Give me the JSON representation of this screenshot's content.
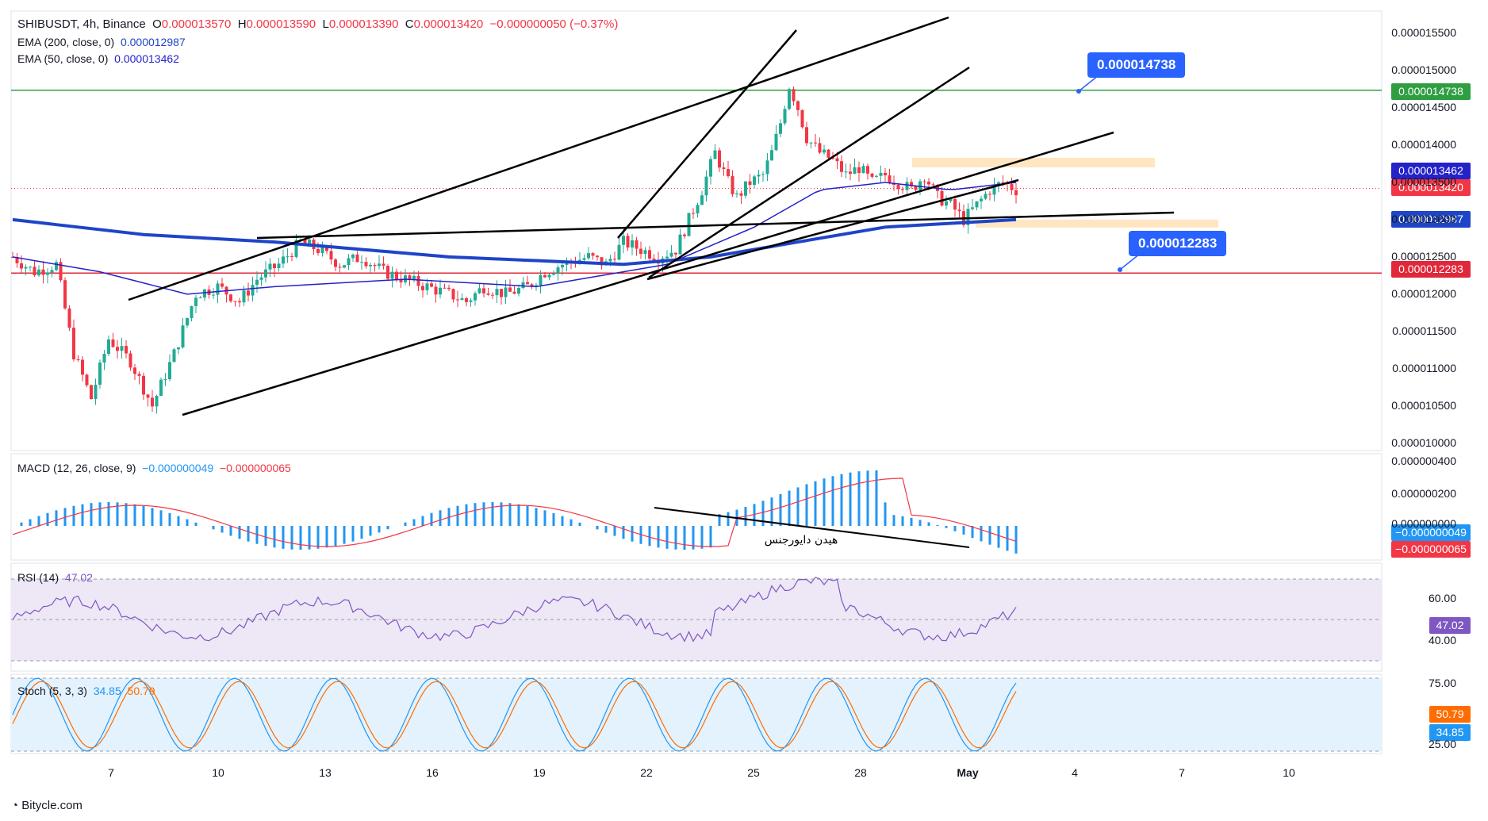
{
  "header": {
    "symbol": "SHIBUSDT, 4h, Binance",
    "o_label": "O",
    "o": "0.000013570",
    "h_label": "H",
    "h": "0.000013590",
    "l_label": "L",
    "l": "0.000013390",
    "c_label": "C",
    "c": "0.000013420",
    "change": "−0.000000050 (−0.37%)"
  },
  "indicators": {
    "ema200_label": "EMA (200, close, 0)",
    "ema200_value": "0.000012987",
    "ema50_label": "EMA (50, close, 0)",
    "ema50_value": "0.000013462",
    "macd_label": "MACD (12, 26, close, 9)",
    "macd_value": "−0.000000049",
    "signal_value": "−0.000000065",
    "rsi_label": "RSI (14)",
    "rsi_value": "47.02",
    "stoch_label": "Stoch (5, 3, 3)",
    "stoch_k": "34.85",
    "stoch_d": "50.79"
  },
  "annotations": {
    "callout_top": "0.000014738",
    "callout_bottom": "0.000012283",
    "divergence_text": "هیدن دایورجنس"
  },
  "price_tags": {
    "green": "0.000014738",
    "ema50": "0.000013462",
    "last": "0.000013420",
    "ema200": "0.000012987",
    "red": "0.000012283",
    "macd": "−0.000000049",
    "signal": "−0.000000065",
    "rsi": "47.02",
    "stoch_d": "50.79",
    "stoch_k": "34.85"
  },
  "y_ticks": [
    "0.000015500",
    "0.000015000",
    "0.000014500",
    "0.000014000",
    "0.000013500",
    "0.000013000",
    "0.000012500",
    "0.000012000",
    "0.000011500",
    "0.000011000",
    "0.000010500",
    "0.000010000"
  ],
  "macd_ticks": [
    "0.000000400",
    "0.000000200",
    "0.000000000"
  ],
  "rsi_ticks": [
    "60.00",
    "40.00"
  ],
  "stoch_ticks": [
    "75.00",
    "25.00"
  ],
  "x_ticks": [
    "7",
    "10",
    "13",
    "16",
    "19",
    "22",
    "25",
    "28",
    "May",
    "4",
    "7",
    "10"
  ],
  "watermark": "Bitycle.com",
  "colors": {
    "up": "#22ab94",
    "down": "#f23645",
    "ema50": "#2422c9",
    "ema200": "#1e45c8",
    "green_line": "#2e9e40",
    "red_line": "#e0283a",
    "callout": "#2962ff",
    "macd_hist": "#2196f3",
    "signal": "#f23645",
    "rsi": "#7e57c2",
    "rsi_band": "#ede7f6",
    "stoch_k": "#2196f3",
    "stoch_d": "#ff6d00",
    "stoch_band": "#e3f2fd"
  },
  "chart_data": {
    "type": "candlestick",
    "symbol": "SHIBUSDT",
    "timeframe": "4h",
    "ylim": [
      9.9e-06,
      1.58e-05
    ],
    "levels": [
      1.4738e-05,
      1.2283e-05
    ],
    "x_labels": [
      "7",
      "10",
      "13",
      "16",
      "19",
      "22",
      "25",
      "28",
      "May",
      "4",
      "7",
      "10"
    ],
    "price_path": [
      [
        0,
        1.25e-05
      ],
      [
        5,
        1.23e-05
      ],
      [
        10,
        1.24e-05
      ],
      [
        14,
        1.12e-05
      ],
      [
        18,
        1.06e-05
      ],
      [
        22,
        1.14e-05
      ],
      [
        27,
        1.11e-05
      ],
      [
        32,
        1.05e-05
      ],
      [
        37,
        1.12e-05
      ],
      [
        42,
        1.2e-05
      ],
      [
        47,
        1.21e-05
      ],
      [
        52,
        1.19e-05
      ],
      [
        56,
        1.22e-05
      ],
      [
        61,
        1.24e-05
      ],
      [
        66,
        1.27e-05
      ],
      [
        70,
        1.26e-05
      ],
      [
        75,
        1.24e-05
      ],
      [
        80,
        1.25e-05
      ],
      [
        85,
        1.23e-05
      ],
      [
        90,
        1.22e-05
      ],
      [
        95,
        1.21e-05
      ],
      [
        100,
        1.2e-05
      ],
      [
        104,
        1.19e-05
      ],
      [
        108,
        1.21e-05
      ],
      [
        113,
        1.2e-05
      ],
      [
        118,
        1.21e-05
      ],
      [
        122,
        1.23e-05
      ],
      [
        126,
        1.24e-05
      ],
      [
        132,
        1.25e-05
      ],
      [
        136,
        1.24e-05
      ],
      [
        140,
        1.27e-05
      ],
      [
        144,
        1.26e-05
      ],
      [
        148,
        1.25e-05
      ],
      [
        152,
        1.26e-05
      ],
      [
        155,
        1.3e-05
      ],
      [
        158,
        1.34e-05
      ],
      [
        161,
        1.39e-05
      ],
      [
        164,
        1.35e-05
      ],
      [
        166,
        1.33e-05
      ],
      [
        169,
        1.35e-05
      ],
      [
        172,
        1.36e-05
      ],
      [
        174,
        1.39e-05
      ],
      [
        176,
        1.43e-05
      ],
      [
        178,
        1.48e-05
      ],
      [
        180,
        1.45e-05
      ],
      [
        182,
        1.41e-05
      ],
      [
        185,
        1.39e-05
      ],
      [
        188,
        1.38e-05
      ],
      [
        191,
        1.36e-05
      ],
      [
        194,
        1.37e-05
      ],
      [
        197,
        1.35e-05
      ],
      [
        200,
        1.36e-05
      ],
      [
        203,
        1.35e-05
      ],
      [
        206,
        1.34e-05
      ],
      [
        209,
        1.36e-05
      ],
      [
        212,
        1.33e-05
      ],
      [
        215,
        1.32e-05
      ],
      [
        218,
        1.3e-05
      ],
      [
        221,
        1.32e-05
      ],
      [
        224,
        1.34e-05
      ],
      [
        227,
        1.35e-05
      ],
      [
        230,
        1.34e-05
      ]
    ],
    "ema200_path": [
      [
        0,
        1.3e-05
      ],
      [
        30,
        1.28e-05
      ],
      [
        60,
        1.27e-05
      ],
      [
        100,
        1.25e-05
      ],
      [
        140,
        1.24e-05
      ],
      [
        160,
        1.25e-05
      ],
      [
        180,
        1.27e-05
      ],
      [
        200,
        1.29e-05
      ],
      [
        230,
        1.3e-05
      ]
    ],
    "ema50_path": [
      [
        0,
        1.25e-05
      ],
      [
        20,
        1.23e-05
      ],
      [
        40,
        1.2e-05
      ],
      [
        60,
        1.21e-05
      ],
      [
        90,
        1.22e-05
      ],
      [
        120,
        1.21e-05
      ],
      [
        150,
        1.24e-05
      ],
      [
        170,
        1.29e-05
      ],
      [
        185,
        1.34e-05
      ],
      [
        200,
        1.35e-05
      ],
      [
        215,
        1.34e-05
      ],
      [
        230,
        1.35e-05
      ]
    ]
  }
}
